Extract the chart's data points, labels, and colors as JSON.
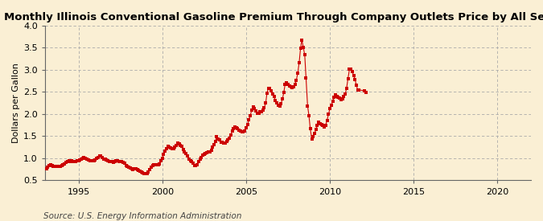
{
  "title": "Monthly Illinois Conventional Gasoline Premium Through Company Outlets Price by All Sellers",
  "ylabel": "Dollars per Gallon",
  "source": "Source: U.S. Energy Information Administration",
  "background_color": "#faefd4",
  "marker_color": "#cc0000",
  "line_color": "#cc0000",
  "xlim": [
    1993.0,
    2022.0
  ],
  "ylim": [
    0.5,
    4.0
  ],
  "yticks": [
    0.5,
    1.0,
    1.5,
    2.0,
    2.5,
    3.0,
    3.5,
    4.0
  ],
  "xticks": [
    1995,
    2000,
    2005,
    2010,
    2015,
    2020
  ],
  "data": [
    [
      1993.08,
      0.755
    ],
    [
      1993.17,
      0.795
    ],
    [
      1993.25,
      0.835
    ],
    [
      1993.33,
      0.855
    ],
    [
      1993.42,
      0.84
    ],
    [
      1993.5,
      0.825
    ],
    [
      1993.58,
      0.82
    ],
    [
      1993.67,
      0.815
    ],
    [
      1993.75,
      0.815
    ],
    [
      1993.83,
      0.815
    ],
    [
      1993.92,
      0.82
    ],
    [
      1994.0,
      0.835
    ],
    [
      1994.08,
      0.855
    ],
    [
      1994.17,
      0.875
    ],
    [
      1994.25,
      0.905
    ],
    [
      1994.33,
      0.92
    ],
    [
      1994.42,
      0.94
    ],
    [
      1994.5,
      0.935
    ],
    [
      1994.58,
      0.94
    ],
    [
      1994.67,
      0.935
    ],
    [
      1994.75,
      0.925
    ],
    [
      1994.83,
      0.935
    ],
    [
      1994.92,
      0.94
    ],
    [
      1995.0,
      0.95
    ],
    [
      1995.08,
      0.965
    ],
    [
      1995.17,
      0.985
    ],
    [
      1995.25,
      1.005
    ],
    [
      1995.33,
      1.01
    ],
    [
      1995.42,
      1.005
    ],
    [
      1995.5,
      0.99
    ],
    [
      1995.58,
      0.97
    ],
    [
      1995.67,
      0.945
    ],
    [
      1995.75,
      0.94
    ],
    [
      1995.83,
      0.94
    ],
    [
      1995.92,
      0.945
    ],
    [
      1996.0,
      0.97
    ],
    [
      1996.08,
      0.995
    ],
    [
      1996.17,
      1.025
    ],
    [
      1996.25,
      1.045
    ],
    [
      1996.33,
      1.045
    ],
    [
      1996.42,
      1.02
    ],
    [
      1996.5,
      0.99
    ],
    [
      1996.58,
      0.975
    ],
    [
      1996.67,
      0.955
    ],
    [
      1996.75,
      0.94
    ],
    [
      1996.83,
      0.925
    ],
    [
      1996.92,
      0.92
    ],
    [
      1997.0,
      0.92
    ],
    [
      1997.08,
      0.915
    ],
    [
      1997.17,
      0.93
    ],
    [
      1997.25,
      0.94
    ],
    [
      1997.33,
      0.94
    ],
    [
      1997.42,
      0.935
    ],
    [
      1997.5,
      0.935
    ],
    [
      1997.58,
      0.92
    ],
    [
      1997.67,
      0.9
    ],
    [
      1997.75,
      0.885
    ],
    [
      1997.83,
      0.84
    ],
    [
      1997.92,
      0.82
    ],
    [
      1998.0,
      0.8
    ],
    [
      1998.08,
      0.775
    ],
    [
      1998.17,
      0.755
    ],
    [
      1998.25,
      0.75
    ],
    [
      1998.33,
      0.76
    ],
    [
      1998.42,
      0.755
    ],
    [
      1998.5,
      0.74
    ],
    [
      1998.58,
      0.73
    ],
    [
      1998.67,
      0.71
    ],
    [
      1998.75,
      0.69
    ],
    [
      1998.83,
      0.67
    ],
    [
      1998.92,
      0.66
    ],
    [
      1999.0,
      0.65
    ],
    [
      1999.08,
      0.66
    ],
    [
      1999.17,
      0.685
    ],
    [
      1999.25,
      0.74
    ],
    [
      1999.33,
      0.8
    ],
    [
      1999.42,
      0.84
    ],
    [
      1999.5,
      0.845
    ],
    [
      1999.58,
      0.85
    ],
    [
      1999.67,
      0.845
    ],
    [
      1999.75,
      0.845
    ],
    [
      1999.83,
      0.875
    ],
    [
      1999.92,
      0.94
    ],
    [
      2000.0,
      1.005
    ],
    [
      2000.08,
      1.09
    ],
    [
      2000.17,
      1.155
    ],
    [
      2000.25,
      1.21
    ],
    [
      2000.33,
      1.27
    ],
    [
      2000.42,
      1.25
    ],
    [
      2000.5,
      1.235
    ],
    [
      2000.58,
      1.215
    ],
    [
      2000.67,
      1.22
    ],
    [
      2000.75,
      1.25
    ],
    [
      2000.83,
      1.295
    ],
    [
      2000.92,
      1.345
    ],
    [
      2001.0,
      1.33
    ],
    [
      2001.08,
      1.295
    ],
    [
      2001.17,
      1.265
    ],
    [
      2001.25,
      1.2
    ],
    [
      2001.33,
      1.15
    ],
    [
      2001.42,
      1.105
    ],
    [
      2001.5,
      1.055
    ],
    [
      2001.58,
      0.985
    ],
    [
      2001.67,
      0.945
    ],
    [
      2001.75,
      0.93
    ],
    [
      2001.83,
      0.885
    ],
    [
      2001.92,
      0.84
    ],
    [
      2002.0,
      0.84
    ],
    [
      2002.08,
      0.855
    ],
    [
      2002.17,
      0.92
    ],
    [
      2002.25,
      0.975
    ],
    [
      2002.33,
      1.015
    ],
    [
      2002.42,
      1.075
    ],
    [
      2002.5,
      1.095
    ],
    [
      2002.58,
      1.105
    ],
    [
      2002.67,
      1.12
    ],
    [
      2002.75,
      1.14
    ],
    [
      2002.83,
      1.15
    ],
    [
      2002.92,
      1.185
    ],
    [
      2003.0,
      1.25
    ],
    [
      2003.08,
      1.31
    ],
    [
      2003.17,
      1.39
    ],
    [
      2003.25,
      1.49
    ],
    [
      2003.33,
      1.43
    ],
    [
      2003.42,
      1.41
    ],
    [
      2003.5,
      1.37
    ],
    [
      2003.58,
      1.36
    ],
    [
      2003.67,
      1.35
    ],
    [
      2003.75,
      1.35
    ],
    [
      2003.83,
      1.38
    ],
    [
      2003.92,
      1.415
    ],
    [
      2004.0,
      1.46
    ],
    [
      2004.08,
      1.52
    ],
    [
      2004.17,
      1.61
    ],
    [
      2004.25,
      1.67
    ],
    [
      2004.33,
      1.7
    ],
    [
      2004.42,
      1.695
    ],
    [
      2004.5,
      1.67
    ],
    [
      2004.58,
      1.64
    ],
    [
      2004.67,
      1.62
    ],
    [
      2004.75,
      1.595
    ],
    [
      2004.83,
      1.6
    ],
    [
      2004.92,
      1.62
    ],
    [
      2005.0,
      1.685
    ],
    [
      2005.08,
      1.76
    ],
    [
      2005.17,
      1.875
    ],
    [
      2005.25,
      1.965
    ],
    [
      2005.33,
      2.085
    ],
    [
      2005.42,
      2.16
    ],
    [
      2005.5,
      2.12
    ],
    [
      2005.58,
      2.075
    ],
    [
      2005.67,
      2.025
    ],
    [
      2005.75,
      2.01
    ],
    [
      2005.83,
      2.05
    ],
    [
      2005.92,
      2.06
    ],
    [
      2006.0,
      2.09
    ],
    [
      2006.08,
      2.145
    ],
    [
      2006.17,
      2.245
    ],
    [
      2006.25,
      2.48
    ],
    [
      2006.33,
      2.58
    ],
    [
      2006.42,
      2.59
    ],
    [
      2006.5,
      2.52
    ],
    [
      2006.58,
      2.455
    ],
    [
      2006.67,
      2.395
    ],
    [
      2006.75,
      2.305
    ],
    [
      2006.83,
      2.255
    ],
    [
      2006.92,
      2.2
    ],
    [
      2007.0,
      2.175
    ],
    [
      2007.08,
      2.23
    ],
    [
      2007.17,
      2.34
    ],
    [
      2007.25,
      2.49
    ],
    [
      2007.33,
      2.675
    ],
    [
      2007.42,
      2.71
    ],
    [
      2007.5,
      2.68
    ],
    [
      2007.58,
      2.64
    ],
    [
      2007.67,
      2.62
    ],
    [
      2007.75,
      2.6
    ],
    [
      2007.83,
      2.62
    ],
    [
      2007.92,
      2.68
    ],
    [
      2008.0,
      2.77
    ],
    [
      2008.08,
      2.92
    ],
    [
      2008.17,
      3.17
    ],
    [
      2008.25,
      3.49
    ],
    [
      2008.33,
      3.68
    ],
    [
      2008.42,
      3.5
    ],
    [
      2008.5,
      3.34
    ],
    [
      2008.58,
      2.81
    ],
    [
      2008.67,
      2.19
    ],
    [
      2008.75,
      1.97
    ],
    [
      2008.83,
      1.67
    ],
    [
      2008.92,
      1.44
    ],
    [
      2009.0,
      1.49
    ],
    [
      2009.08,
      1.555
    ],
    [
      2009.17,
      1.65
    ],
    [
      2009.25,
      1.74
    ],
    [
      2009.33,
      1.81
    ],
    [
      2009.42,
      1.78
    ],
    [
      2009.5,
      1.76
    ],
    [
      2009.58,
      1.74
    ],
    [
      2009.67,
      1.7
    ],
    [
      2009.75,
      1.75
    ],
    [
      2009.83,
      1.86
    ],
    [
      2009.92,
      2.0
    ],
    [
      2010.0,
      2.12
    ],
    [
      2010.08,
      2.195
    ],
    [
      2010.17,
      2.29
    ],
    [
      2010.25,
      2.39
    ],
    [
      2010.33,
      2.435
    ],
    [
      2010.42,
      2.4
    ],
    [
      2010.5,
      2.38
    ],
    [
      2010.58,
      2.355
    ],
    [
      2010.67,
      2.33
    ],
    [
      2010.75,
      2.345
    ],
    [
      2010.83,
      2.395
    ],
    [
      2010.92,
      2.46
    ],
    [
      2011.0,
      2.59
    ],
    [
      2011.08,
      2.8
    ],
    [
      2011.17,
      3.01
    ],
    [
      2011.25,
      3.01
    ],
    [
      2011.33,
      2.97
    ],
    [
      2011.42,
      2.87
    ],
    [
      2011.5,
      2.79
    ],
    [
      2011.58,
      2.65
    ],
    [
      2011.67,
      2.54
    ],
    [
      2011.75,
      2.55
    ],
    [
      2012.08,
      2.52
    ],
    [
      2012.17,
      2.49
    ]
  ]
}
